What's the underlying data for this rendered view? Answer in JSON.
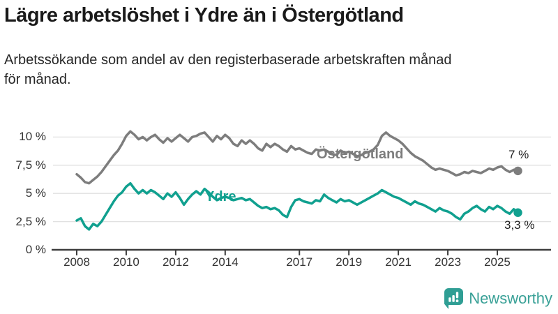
{
  "header": {
    "title": "Lägre arbetslöshet i Ydre än i Östergötland",
    "subtitle_line1": "Arbetssökande som andel av den registerbaserade arbetskraften månad",
    "subtitle_line2": "för månad."
  },
  "chart_data": {
    "type": "line",
    "title": "Lägre arbetslöshet i Ydre än i Östergötland",
    "subtitle": "Arbetssökande som andel av den registerbaserade arbetskraften månad för månad.",
    "x_start": 2008,
    "x_step_months": 2,
    "ylim": [
      0,
      10.8
    ],
    "grid": true,
    "grid_color": "#e0e0e0",
    "axis_color": "#3d3d3d",
    "yticks": [
      {
        "value": 0,
        "label": "0 %"
      },
      {
        "value": 2.5,
        "label": "2,5 %"
      },
      {
        "value": 5,
        "label": "5 %"
      },
      {
        "value": 7.5,
        "label": "7,5 %"
      },
      {
        "value": 10,
        "label": "10 %"
      }
    ],
    "xticks": [
      {
        "year": 2008,
        "label": "2008"
      },
      {
        "year": 2010,
        "label": "2010"
      },
      {
        "year": 2012,
        "label": "2012"
      },
      {
        "year": 2014,
        "label": "2014"
      },
      {
        "year": 2017,
        "label": "2017"
      },
      {
        "year": 2019,
        "label": "2019"
      },
      {
        "year": 2021,
        "label": "2021"
      },
      {
        "year": 2023,
        "label": "2023"
      },
      {
        "year": 2025,
        "label": "2025"
      }
    ],
    "series": [
      {
        "id": "ostergotland",
        "name": "Östergötland",
        "color": "#7d7d7d",
        "end_label": "7 %",
        "end_value": 7.0,
        "values": [
          6.7,
          6.4,
          6.0,
          5.9,
          6.2,
          6.5,
          6.9,
          7.4,
          7.9,
          8.4,
          8.8,
          9.4,
          10.1,
          10.5,
          10.2,
          9.8,
          10.0,
          9.7,
          10.0,
          10.2,
          9.8,
          9.5,
          9.9,
          9.6,
          9.9,
          10.2,
          9.9,
          9.6,
          10.0,
          10.1,
          10.3,
          10.4,
          10.0,
          9.6,
          10.1,
          9.8,
          10.2,
          9.9,
          9.4,
          9.2,
          9.7,
          9.4,
          9.7,
          9.4,
          9.0,
          8.8,
          9.4,
          9.1,
          9.4,
          9.2,
          8.9,
          8.7,
          9.2,
          8.9,
          9.0,
          8.8,
          8.6,
          8.5,
          8.9,
          8.8,
          8.9,
          8.7,
          8.5,
          8.4,
          8.8,
          8.6,
          8.7,
          8.5,
          8.3,
          8.4,
          8.6,
          8.7,
          8.9,
          9.3,
          10.1,
          10.4,
          10.1,
          9.9,
          9.7,
          9.4,
          9.0,
          8.6,
          8.3,
          8.1,
          7.9,
          7.6,
          7.3,
          7.1,
          7.2,
          7.1,
          7.0,
          6.8,
          6.6,
          6.7,
          6.9,
          6.8,
          7.0,
          6.9,
          6.8,
          7.0,
          7.2,
          7.1,
          7.3,
          7.4,
          7.1,
          6.9,
          7.1,
          7.0
        ]
      },
      {
        "id": "ydre",
        "name": "Ydre",
        "color": "#10a08f",
        "end_label": "3,3 %",
        "end_value": 3.3,
        "values": [
          2.6,
          2.8,
          2.1,
          1.8,
          2.3,
          2.1,
          2.5,
          3.1,
          3.7,
          4.3,
          4.8,
          5.1,
          5.6,
          5.9,
          5.4,
          5.0,
          5.3,
          5.0,
          5.3,
          5.1,
          4.8,
          4.5,
          5.0,
          4.7,
          5.1,
          4.6,
          4.0,
          4.5,
          4.9,
          5.2,
          4.9,
          5.4,
          5.1,
          4.7,
          4.4,
          4.6,
          4.7,
          4.6,
          4.4,
          4.5,
          4.6,
          4.4,
          4.5,
          4.2,
          3.9,
          3.7,
          3.8,
          3.6,
          3.7,
          3.5,
          3.1,
          2.9,
          3.8,
          4.4,
          4.5,
          4.3,
          4.2,
          4.1,
          4.4,
          4.3,
          4.9,
          4.6,
          4.4,
          4.2,
          4.5,
          4.3,
          4.4,
          4.2,
          4.0,
          4.2,
          4.4,
          4.6,
          4.8,
          5.0,
          5.3,
          5.1,
          4.9,
          4.7,
          4.6,
          4.4,
          4.2,
          4.0,
          4.3,
          4.1,
          4.0,
          3.8,
          3.6,
          3.4,
          3.7,
          3.5,
          3.4,
          3.2,
          2.9,
          2.7,
          3.2,
          3.4,
          3.7,
          3.9,
          3.6,
          3.4,
          3.8,
          3.6,
          3.9,
          3.7,
          3.4,
          3.2,
          3.6,
          3.3
        ]
      }
    ]
  },
  "footer": {
    "brand": "Newsworthy",
    "brand_color": "#38a096"
  }
}
